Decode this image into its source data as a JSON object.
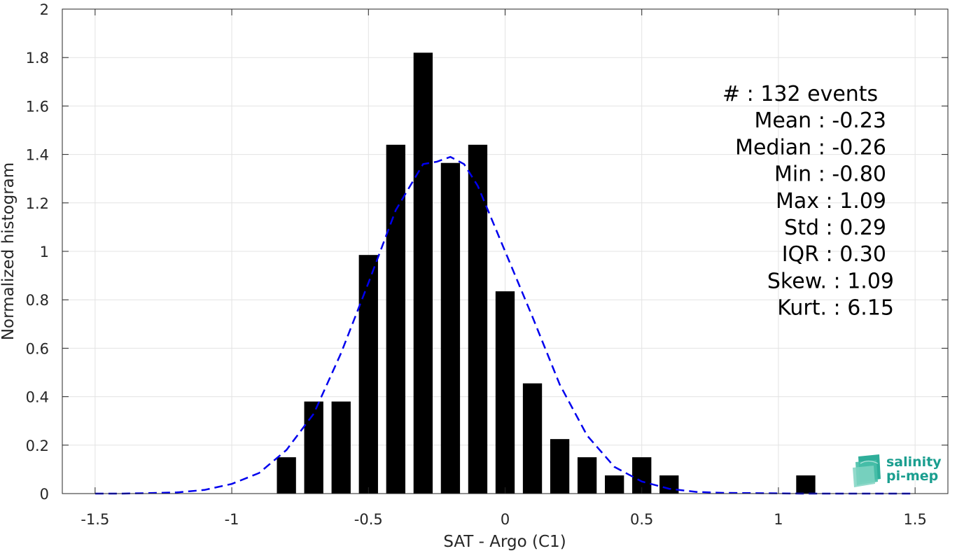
{
  "chart_data": {
    "type": "bar",
    "xlabel": "SAT - Argo (C1)",
    "ylabel": "Normalized histogram",
    "xlim": [
      -1.62,
      1.62
    ],
    "ylim": [
      0,
      2
    ],
    "xticks": [
      -1.5,
      -1,
      -0.5,
      0,
      0.5,
      1,
      1.5
    ],
    "xtick_labels": [
      "-1.5",
      "-1",
      "-0.5",
      "0",
      "0.5",
      "1",
      "1.5"
    ],
    "yticks": [
      0,
      0.2,
      0.4,
      0.6,
      0.8,
      1,
      1.2,
      1.4,
      1.6,
      1.8,
      2
    ],
    "ytick_labels": [
      "0",
      "0.2",
      "0.4",
      "0.6",
      "0.8",
      "1",
      "1.2",
      "1.4",
      "1.6",
      "1.8",
      "2"
    ],
    "grid": true,
    "bar_color": "#000000",
    "bar_width": 0.07,
    "bars": {
      "x": [
        -0.8,
        -0.7,
        -0.6,
        -0.5,
        -0.4,
        -0.3,
        -0.2,
        -0.1,
        0.0,
        0.1,
        0.2,
        0.3,
        0.4,
        0.5,
        0.6,
        1.1
      ],
      "values": [
        0.15,
        0.38,
        0.38,
        0.985,
        1.44,
        1.82,
        1.365,
        1.44,
        0.835,
        0.455,
        0.225,
        0.15,
        0.075,
        0.15,
        0.075,
        0.075
      ]
    },
    "fit_curve": {
      "style": "dashed",
      "color": "#0000ee",
      "x": [
        -1.5,
        -1.4,
        -1.3,
        -1.2,
        -1.1,
        -1.0,
        -0.9,
        -0.8,
        -0.7,
        -0.6,
        -0.5,
        -0.4,
        -0.3,
        -0.25,
        -0.2,
        -0.15,
        -0.1,
        0.0,
        0.1,
        0.2,
        0.3,
        0.4,
        0.5,
        0.6,
        0.7,
        0.8,
        0.9,
        1.0,
        1.1,
        1.2,
        1.3,
        1.4,
        1.5
      ],
      "y": [
        0.0,
        0.0,
        0.002,
        0.005,
        0.015,
        0.04,
        0.085,
        0.18,
        0.33,
        0.58,
        0.87,
        1.17,
        1.36,
        1.37,
        1.39,
        1.36,
        1.27,
        1.0,
        0.73,
        0.45,
        0.24,
        0.11,
        0.05,
        0.02,
        0.007,
        0.003,
        0.002,
        0.001,
        0.0,
        0.0,
        0.0,
        0.0,
        0.0
      ]
    },
    "stats": [
      {
        "text": "#  : 132 events",
        "anchor": "start"
      },
      {
        "text": "Mean : -0.23",
        "anchor": "end"
      },
      {
        "text": "Median : -0.26",
        "anchor": "end"
      },
      {
        "text": "Min : -0.80",
        "anchor": "end"
      },
      {
        "text": "Max : 1.09",
        "anchor": "end"
      },
      {
        "text": "Std : 0.29",
        "anchor": "end"
      },
      {
        "text": "IQR : 0.30",
        "anchor": "end"
      },
      {
        "text": "Skew. : 1.09",
        "anchor": "end"
      },
      {
        "text": "Kurt. : 6.15",
        "anchor": "end"
      }
    ]
  },
  "logo": {
    "line1": "salinity",
    "line2": "pi-mep",
    "color": "#1a9e8f"
  }
}
